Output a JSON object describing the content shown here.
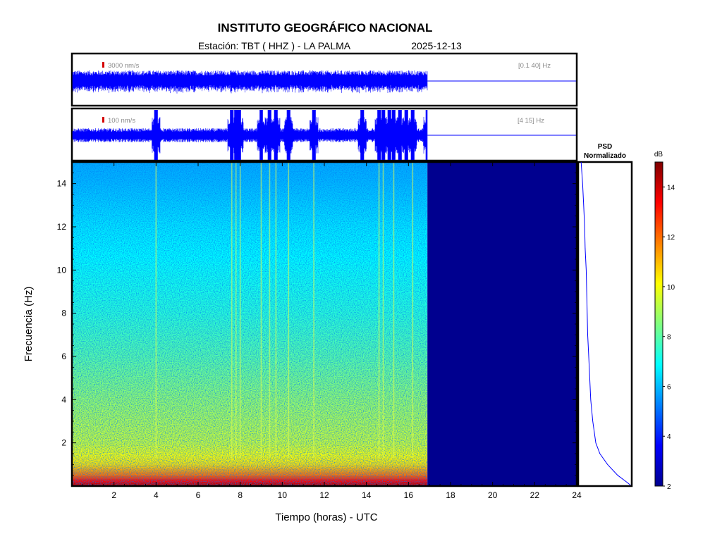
{
  "header": {
    "title": "INSTITUTO GEOGRÁFICO NACIONAL",
    "station_label": "Estación:  TBT ( HHZ ) - LA PALMA",
    "date": "2025-12-13"
  },
  "colors": {
    "trace": "#0000ff",
    "frame": "#000000",
    "scale_mark": "#d40000",
    "empty_fill": "#00008f"
  },
  "chart_data": [
    {
      "type": "line",
      "name": "waveform-broadband",
      "scale_label": "3000 nm/s",
      "filter_label": "[0.1 40] Hz",
      "x": [
        0,
        24
      ],
      "data_end_hour": 16.9,
      "description_level": "continuous noise band"
    },
    {
      "type": "line",
      "name": "waveform-filtered",
      "scale_label": "100 nm/s",
      "filter_label": "[4 15] Hz",
      "x": [
        0,
        24
      ],
      "data_end_hour": 16.9,
      "events_hours": [
        4.0,
        7.6,
        7.8,
        7.95,
        9.0,
        9.4,
        9.7,
        10.3,
        11.5,
        13.8,
        14.6,
        14.8,
        15.1,
        15.3,
        15.6,
        15.9,
        16.2,
        16.9
      ]
    },
    {
      "type": "heatmap",
      "name": "spectrogram",
      "xlabel": "Tiempo (horas) - UTC",
      "ylabel": "Frecuencia  (Hz)",
      "xlim": [
        0,
        24
      ],
      "ylim": [
        0,
        15
      ],
      "xticks": [
        2,
        4,
        6,
        8,
        10,
        12,
        14,
        16,
        18,
        20,
        22,
        24
      ],
      "yticks": [
        2,
        4,
        6,
        8,
        10,
        12,
        14
      ],
      "data_end_hour": 16.9,
      "colorscale": "jet",
      "db_level_profile": [
        {
          "freq": 0.1,
          "db": 14
        },
        {
          "freq": 0.5,
          "db": 12
        },
        {
          "freq": 1.0,
          "db": 10.5
        },
        {
          "freq": 2.0,
          "db": 9.5
        },
        {
          "freq": 4.0,
          "db": 8.8
        },
        {
          "freq": 6.0,
          "db": 8.0
        },
        {
          "freq": 8.0,
          "db": 7.4
        },
        {
          "freq": 10.0,
          "db": 7.0
        },
        {
          "freq": 12.0,
          "db": 6.6
        },
        {
          "freq": 14.0,
          "db": 6.0
        },
        {
          "freq": 15.0,
          "db": 5.8
        }
      ],
      "vertical_streaks_hours": [
        4.0,
        7.6,
        7.8,
        8.0,
        9.0,
        9.4,
        9.7,
        10.3,
        11.5,
        14.6,
        14.8,
        15.3,
        16.2
      ]
    },
    {
      "type": "line",
      "name": "psd-normalized",
      "title": "PSD\nNormalizado",
      "title_line1": "PSD",
      "title_line2": "Normalizado",
      "freq": [
        15,
        14,
        13,
        12,
        11,
        10,
        9,
        8,
        7,
        6,
        5,
        4,
        3,
        2,
        1.5,
        1,
        0.5,
        0.2,
        0.05
      ],
      "value": [
        0.03,
        0.06,
        0.08,
        0.1,
        0.11,
        0.13,
        0.14,
        0.15,
        0.16,
        0.18,
        0.2,
        0.22,
        0.26,
        0.32,
        0.4,
        0.55,
        0.75,
        0.92,
        1.0
      ]
    },
    {
      "type": "heatmap",
      "name": "colorbar",
      "label": "dB",
      "range": [
        2,
        15
      ],
      "ticks": [
        2,
        4,
        6,
        8,
        10,
        12,
        14
      ]
    }
  ]
}
